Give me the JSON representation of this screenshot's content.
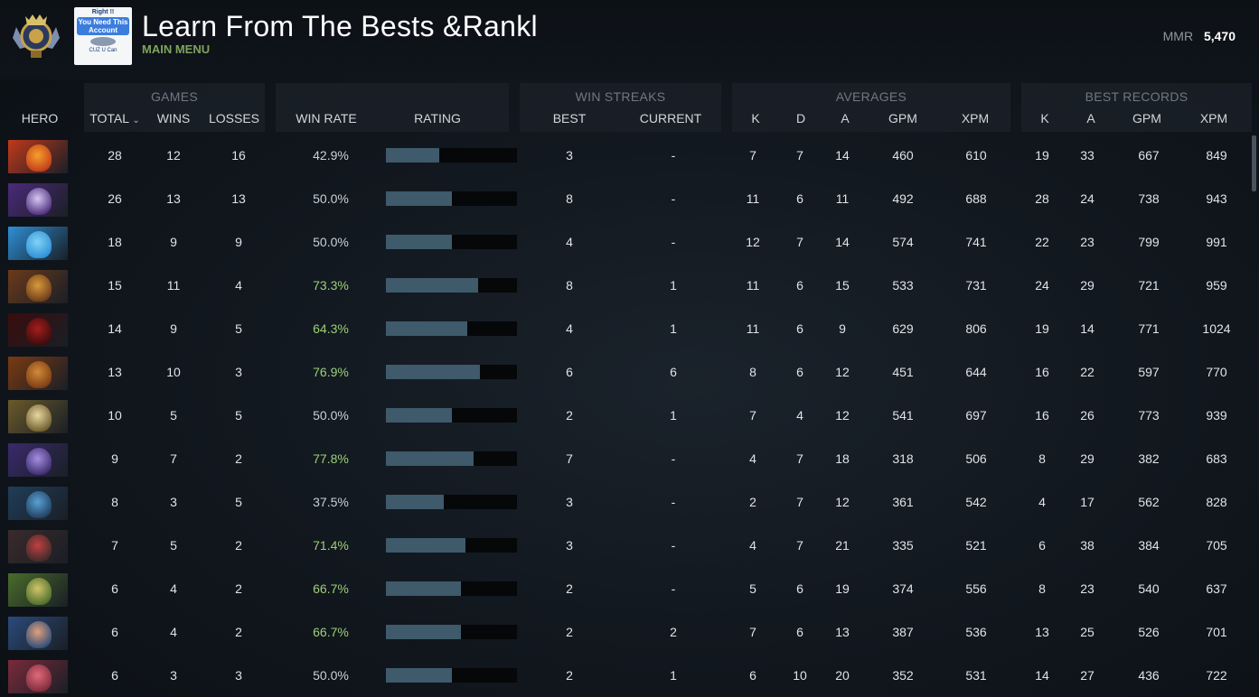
{
  "header": {
    "title": "Learn From The Bests &Rankl",
    "subtitle": "MAIN MENU",
    "mmr_label": "MMR",
    "mmr_value": "5,470",
    "ad": {
      "line1": "Right !!",
      "line2": "You Need This Account",
      "line3": "CUZ U Can"
    },
    "badge_icon": "rank-medal-icon"
  },
  "groups": {
    "games": "GAMES",
    "win_streaks": "WIN STREAKS",
    "averages": "AVERAGES",
    "best_records": "BEST RECORDS"
  },
  "columns": {
    "hero": "HERO",
    "total": "TOTAL",
    "wins": "WINS",
    "losses": "LOSSES",
    "win_rate": "WIN RATE",
    "rating": "RATING",
    "best": "BEST",
    "current": "CURRENT",
    "avg_k": "K",
    "avg_d": "D",
    "avg_a": "A",
    "avg_gpm": "GPM",
    "avg_xpm": "XPM",
    "best_k": "K",
    "best_a": "A",
    "best_gpm": "GPM",
    "best_xpm": "XPM",
    "sort_icon": "chevron-down-icon"
  },
  "colors": {
    "accent_green": "#7fa35c",
    "win_rate_good": "#9ccf78",
    "rating_bar": "#3e5a6b"
  },
  "rows": [
    {
      "hero_colors": [
        "#c0391b",
        "#f5a02a"
      ],
      "total": "28",
      "wins": "12",
      "losses": "16",
      "win_rate": "42.9%",
      "rating": 0.41,
      "best": "3",
      "current": "-",
      "k": "7",
      "d": "7",
      "a": "14",
      "gpm": "460",
      "xpm": "610",
      "bk": "19",
      "ba": "33",
      "bgpm": "667",
      "bxpm": "849"
    },
    {
      "hero_colors": [
        "#4b2a7a",
        "#d6c7f2"
      ],
      "total": "26",
      "wins": "13",
      "losses": "13",
      "win_rate": "50.0%",
      "rating": 0.5,
      "best": "8",
      "current": "-",
      "k": "11",
      "d": "6",
      "a": "11",
      "gpm": "492",
      "xpm": "688",
      "bk": "28",
      "ba": "24",
      "bgpm": "738",
      "bxpm": "943"
    },
    {
      "hero_colors": [
        "#2d8fd6",
        "#7fd3f4"
      ],
      "total": "18",
      "wins": "9",
      "losses": "9",
      "win_rate": "50.0%",
      "rating": 0.5,
      "best": "4",
      "current": "-",
      "k": "12",
      "d": "7",
      "a": "14",
      "gpm": "574",
      "xpm": "741",
      "bk": "22",
      "ba": "23",
      "bgpm": "799",
      "bxpm": "991"
    },
    {
      "hero_colors": [
        "#6b3a1a",
        "#d79a3b"
      ],
      "total": "15",
      "wins": "11",
      "losses": "4",
      "win_rate": "73.3%",
      "rating": 0.7,
      "best": "8",
      "current": "1",
      "k": "11",
      "d": "6",
      "a": "15",
      "gpm": "533",
      "xpm": "731",
      "bk": "24",
      "ba": "29",
      "bgpm": "721",
      "bxpm": "959"
    },
    {
      "hero_colors": [
        "#3a0c0c",
        "#a51d1d"
      ],
      "total": "14",
      "wins": "9",
      "losses": "5",
      "win_rate": "64.3%",
      "rating": 0.62,
      "best": "4",
      "current": "1",
      "k": "11",
      "d": "6",
      "a": "9",
      "gpm": "629",
      "xpm": "806",
      "bk": "19",
      "ba": "14",
      "bgpm": "771",
      "bxpm": "1024"
    },
    {
      "hero_colors": [
        "#7a3a12",
        "#d28a3a"
      ],
      "total": "13",
      "wins": "10",
      "losses": "3",
      "win_rate": "76.9%",
      "rating": 0.72,
      "best": "6",
      "current": "6",
      "k": "8",
      "d": "6",
      "a": "12",
      "gpm": "451",
      "xpm": "644",
      "bk": "16",
      "ba": "22",
      "bgpm": "597",
      "bxpm": "770"
    },
    {
      "hero_colors": [
        "#6b5a2a",
        "#e8d7a0"
      ],
      "total": "10",
      "wins": "5",
      "losses": "5",
      "win_rate": "50.0%",
      "rating": 0.5,
      "best": "2",
      "current": "1",
      "k": "7",
      "d": "4",
      "a": "12",
      "gpm": "541",
      "xpm": "697",
      "bk": "16",
      "ba": "26",
      "bgpm": "773",
      "bxpm": "939"
    },
    {
      "hero_colors": [
        "#3a2a6b",
        "#a48fe0"
      ],
      "total": "9",
      "wins": "7",
      "losses": "2",
      "win_rate": "77.8%",
      "rating": 0.67,
      "best": "7",
      "current": "-",
      "k": "4",
      "d": "7",
      "a": "18",
      "gpm": "318",
      "xpm": "506",
      "bk": "8",
      "ba": "29",
      "bgpm": "382",
      "bxpm": "683"
    },
    {
      "hero_colors": [
        "#1f3d5a",
        "#5aa0d6"
      ],
      "total": "8",
      "wins": "3",
      "losses": "5",
      "win_rate": "37.5%",
      "rating": 0.44,
      "best": "3",
      "current": "-",
      "k": "2",
      "d": "7",
      "a": "12",
      "gpm": "361",
      "xpm": "542",
      "bk": "4",
      "ba": "17",
      "bgpm": "562",
      "bxpm": "828"
    },
    {
      "hero_colors": [
        "#3a2a2a",
        "#c04040"
      ],
      "total": "7",
      "wins": "5",
      "losses": "2",
      "win_rate": "71.4%",
      "rating": 0.61,
      "best": "3",
      "current": "-",
      "k": "4",
      "d": "7",
      "a": "21",
      "gpm": "335",
      "xpm": "521",
      "bk": "6",
      "ba": "38",
      "bgpm": "384",
      "bxpm": "705"
    },
    {
      "hero_colors": [
        "#4a6b2a",
        "#d2c46a"
      ],
      "total": "6",
      "wins": "4",
      "losses": "2",
      "win_rate": "66.7%",
      "rating": 0.57,
      "best": "2",
      "current": "-",
      "k": "5",
      "d": "6",
      "a": "19",
      "gpm": "374",
      "xpm": "556",
      "bk": "8",
      "ba": "23",
      "bgpm": "540",
      "bxpm": "637"
    },
    {
      "hero_colors": [
        "#2a4a7a",
        "#e0a07a"
      ],
      "total": "6",
      "wins": "4",
      "losses": "2",
      "win_rate": "66.7%",
      "rating": 0.57,
      "best": "2",
      "current": "2",
      "k": "7",
      "d": "6",
      "a": "13",
      "gpm": "387",
      "xpm": "536",
      "bk": "13",
      "ba": "25",
      "bgpm": "526",
      "bxpm": "701"
    },
    {
      "hero_colors": [
        "#7a2a3a",
        "#e06a7a"
      ],
      "total": "6",
      "wins": "3",
      "losses": "3",
      "win_rate": "50.0%",
      "rating": 0.5,
      "best": "2",
      "current": "1",
      "k": "6",
      "d": "10",
      "a": "20",
      "gpm": "352",
      "xpm": "531",
      "bk": "14",
      "ba": "27",
      "bgpm": "436",
      "bxpm": "722"
    }
  ]
}
